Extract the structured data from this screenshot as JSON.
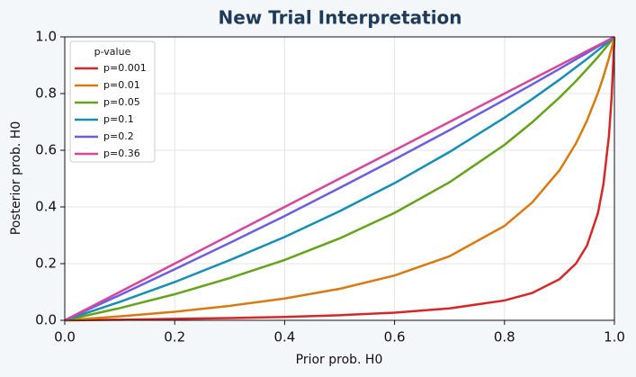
{
  "chart_data": {
    "type": "line",
    "title": "New Trial Interpretation",
    "x_label": "Prior prob. H0",
    "y_label": "Posterior prob. H0",
    "legend_title": "p-value",
    "legend_position": "upper-left",
    "grid": true,
    "x": [
      0,
      0.1,
      0.2,
      0.3,
      0.4,
      0.5,
      0.6,
      0.7,
      0.8,
      0.85,
      0.9,
      0.93,
      0.95,
      0.97,
      0.98,
      0.99,
      0.995,
      1
    ],
    "xlim": [
      0,
      1
    ],
    "ylim": [
      0,
      1
    ],
    "xticks": [
      {
        "value": 0,
        "label": "0.0"
      },
      0.2,
      0.4,
      0.6,
      0.8,
      {
        "value": 1,
        "label": "1.0"
      }
    ],
    "yticks": [
      {
        "value": 0,
        "label": "0.0"
      },
      0.2,
      0.4,
      0.6,
      0.8,
      {
        "value": 1,
        "label": "1.0"
      }
    ],
    "series": [
      {
        "name": "p=0.001",
        "color": "#d62728",
        "values": [
          0,
          0.002,
          0.005,
          0.008,
          0.012,
          0.018,
          0.027,
          0.042,
          0.07,
          0.096,
          0.145,
          0.2,
          0.263,
          0.378,
          0.48,
          0.65,
          0.789,
          1
        ]
      },
      {
        "name": "p=0.01",
        "color": "#d97a10",
        "values": [
          0,
          0.014,
          0.03,
          0.051,
          0.077,
          0.111,
          0.158,
          0.226,
          0.333,
          0.415,
          0.529,
          0.624,
          0.704,
          0.802,
          0.86,
          0.925,
          0.961,
          1
        ]
      },
      {
        "name": "p=0.05",
        "color": "#65a31a",
        "values": [
          0,
          0.043,
          0.092,
          0.149,
          0.213,
          0.289,
          0.379,
          0.487,
          0.619,
          0.698,
          0.786,
          0.844,
          0.886,
          0.929,
          0.952,
          0.976,
          0.988,
          1
        ]
      },
      {
        "name": "p=0.1",
        "color": "#168fb3",
        "values": [
          0,
          0.065,
          0.135,
          0.212,
          0.294,
          0.385,
          0.484,
          0.594,
          0.715,
          0.78,
          0.849,
          0.893,
          0.922,
          0.953,
          0.968,
          0.984,
          0.992,
          1
        ]
      },
      {
        "name": "p=0.2",
        "color": "#6a5fe3",
        "values": [
          0,
          0.089,
          0.18,
          0.273,
          0.368,
          0.467,
          0.568,
          0.671,
          0.778,
          0.832,
          0.887,
          0.921,
          0.943,
          0.966,
          0.977,
          0.989,
          0.994,
          1
        ]
      },
      {
        "name": "p=0.36",
        "color": "#d6479c",
        "values": [
          0,
          0.1,
          0.2,
          0.3,
          0.4,
          0.5,
          0.6,
          0.7,
          0.8,
          0.85,
          0.9,
          0.93,
          0.95,
          0.97,
          0.98,
          0.99,
          0.995,
          1
        ]
      }
    ]
  }
}
